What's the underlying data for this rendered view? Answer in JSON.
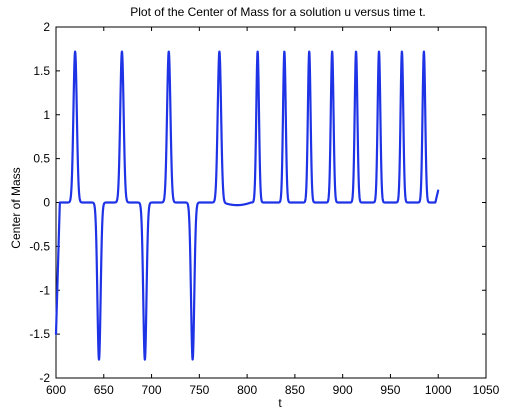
{
  "chart_data": {
    "type": "line",
    "title": "Plot of the Center of Mass for a solution u versus time t.",
    "xlabel": "t",
    "ylabel": "Center of Mass",
    "xlim": [
      600,
      1050
    ],
    "ylim": [
      -2,
      2
    ],
    "x_ticks": [
      600,
      650,
      700,
      750,
      800,
      850,
      900,
      950,
      1000,
      1050
    ],
    "y_ticks": [
      -2,
      -1.5,
      -1,
      -0.5,
      0,
      0.5,
      1,
      1.5,
      2
    ],
    "grid": false,
    "legend": "none",
    "series": [
      {
        "color": "#1f33e6",
        "peak_value": 1.72,
        "trough_value": -1.79,
        "x_start": 600,
        "x_end": 1000,
        "x_end_value": 0.14,
        "x_start_value": -1.5,
        "peaks_x": [
          620,
          669,
          718,
          771,
          811,
          839,
          865,
          889,
          914,
          938,
          962,
          985
        ],
        "troughs_x": [
          645,
          693,
          743
        ],
        "quiet_interval": [
          775,
          804
        ],
        "quiet_dip_value": -0.03
      }
    ]
  }
}
